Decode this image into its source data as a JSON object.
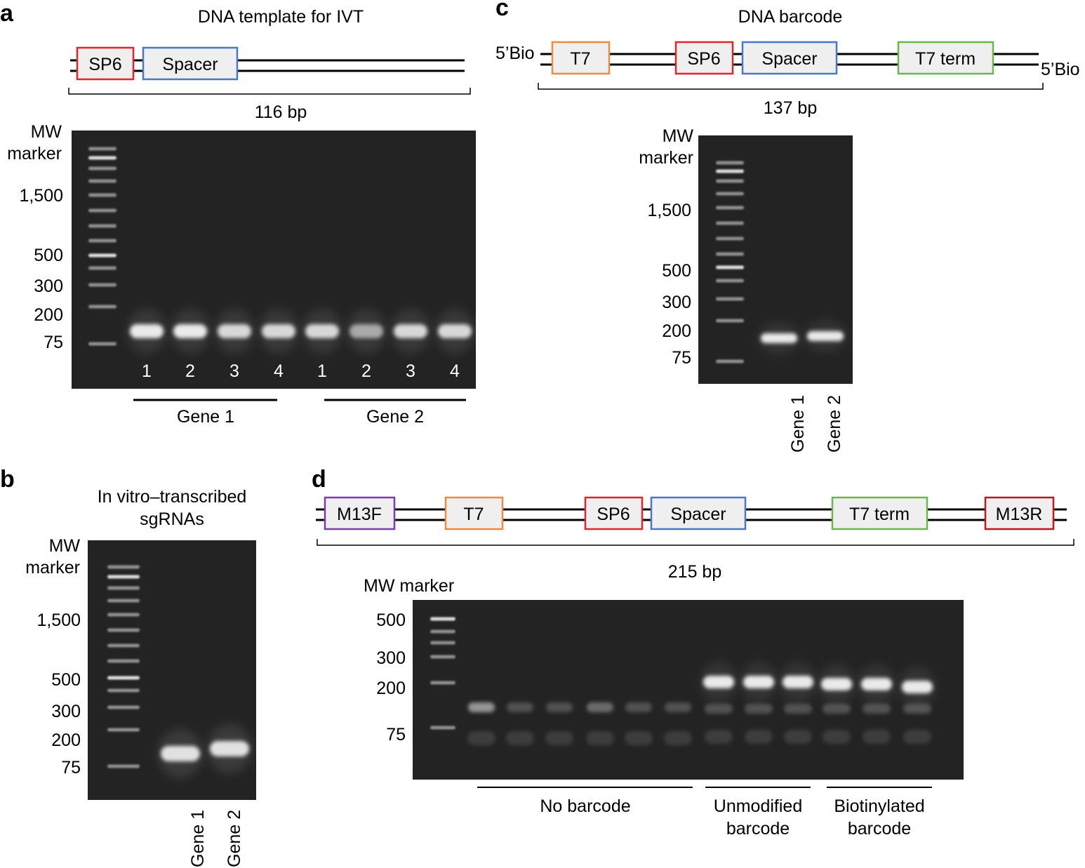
{
  "colors": {
    "sp6": "#e0242a",
    "spacer": "#4a78c8",
    "t7": "#f08a3c",
    "t7term": "#6ab84a",
    "m13f": "#7a3db0",
    "m13r": "#c0161e",
    "box_fill": "#efefef",
    "gel_bg": "#232323"
  },
  "panel_a": {
    "label": "a",
    "title": "DNA template for IVT",
    "elements": [
      "SP6",
      "Spacer"
    ],
    "size": "116 bp",
    "mw_label": [
      "MW",
      "marker"
    ],
    "markers": [
      "1,500",
      "500",
      "300",
      "200",
      "75"
    ],
    "lanes": [
      "1",
      "2",
      "3",
      "4",
      "1",
      "2",
      "3",
      "4"
    ],
    "groups": [
      "Gene 1",
      "Gene 2"
    ]
  },
  "panel_b": {
    "label": "b",
    "title": [
      "In vitro–transcribed",
      "sgRNAs"
    ],
    "mw_label": [
      "MW",
      "marker"
    ],
    "markers": [
      "1,500",
      "500",
      "300",
      "200",
      "75"
    ],
    "lanes": [
      "Gene 1",
      "Gene 2"
    ]
  },
  "panel_c": {
    "label": "c",
    "title": "DNA barcode",
    "left_end": "5’Bio",
    "right_end": "5’Bio",
    "elements": [
      "T7",
      "SP6",
      "Spacer",
      "T7 term"
    ],
    "size": "137 bp",
    "mw_label": [
      "MW",
      "marker"
    ],
    "markers": [
      "1,500",
      "500",
      "300",
      "200",
      "75"
    ],
    "lanes": [
      "Gene 1",
      "Gene 2"
    ]
  },
  "panel_d": {
    "label": "d",
    "elements": [
      "M13F",
      "T7",
      "SP6",
      "Spacer",
      "T7 term",
      "M13R"
    ],
    "size": "215 bp",
    "mw_label": "MW marker",
    "markers": [
      "500",
      "300",
      "200",
      "75"
    ],
    "groups": [
      "No barcode",
      [
        "Unmodified",
        "barcode"
      ],
      [
        "Biotinylated",
        "barcode"
      ]
    ]
  }
}
